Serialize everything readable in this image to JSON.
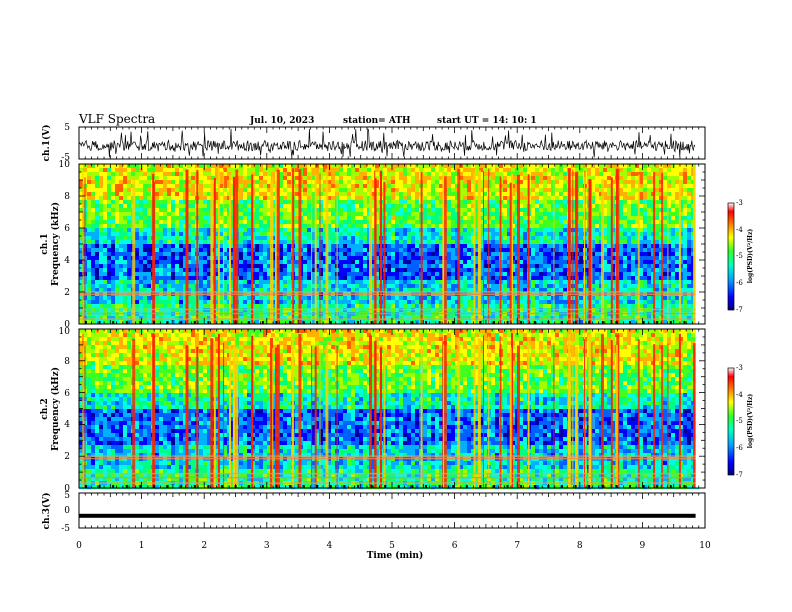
{
  "header": {
    "title": "VLF Spectra",
    "date": "Jul. 10, 2023",
    "station": "station= ATH",
    "start_ut": "start UT = 14: 10: 1"
  },
  "chart_data": {
    "type": "heatmap",
    "x_axis": {
      "label": "Time (min)",
      "range": [
        0,
        10
      ],
      "ticks": [
        "0",
        "1",
        "2",
        "3",
        "4",
        "5",
        "6",
        "7",
        "8",
        "9",
        "10"
      ],
      "data_end": 9.85
    },
    "panels": [
      {
        "type": "line",
        "ylabel": "ch.1(V)",
        "ylim": [
          -5,
          5
        ],
        "yticks": [
          "5",
          "-5"
        ],
        "description_level": "noisy signal, typically -2.5 to 1.5 V with spikes"
      },
      {
        "type": "heatmap",
        "ylabel_channel": "ch.1",
        "ylabel": "Frequency (kHz)",
        "ylim": [
          0,
          10
        ],
        "yticks": [
          "0",
          "2",
          "4",
          "6",
          "8",
          "10"
        ],
        "colorbar": {
          "label": "log(PSD)(V²/Hz)",
          "range": [
            -7,
            -3
          ],
          "ticks": [
            "-3",
            "-4",
            "-5",
            "-6",
            "-7"
          ],
          "colors": [
            "#000080",
            "#0000ff",
            "#00a0ff",
            "#00ffc0",
            "#30ff30",
            "#ffff00",
            "#ff8000",
            "#ff0000",
            "#ffffff"
          ]
        }
      },
      {
        "type": "heatmap",
        "ylabel_channel": "ch.2",
        "ylabel": "Frequency (kHz)",
        "ylim": [
          0,
          10
        ],
        "yticks": [
          "0",
          "2",
          "4",
          "6",
          "8",
          "10"
        ],
        "colorbar": {
          "label": "log(PSD)(V²/Hz)",
          "range": [
            -7,
            -3
          ],
          "ticks": [
            "-3",
            "-4",
            "-5",
            "-6",
            "-7"
          ],
          "colors": [
            "#000080",
            "#0000ff",
            "#00a0ff",
            "#00ffc0",
            "#30ff30",
            "#ffff00",
            "#ff8000",
            "#ff0000",
            "#ffffff"
          ]
        }
      },
      {
        "type": "line",
        "ylabel": "ch.3(V)",
        "ylim": [
          -5,
          5
        ],
        "yticks": [
          "5",
          "0",
          "-5"
        ],
        "level": -1.5
      }
    ]
  }
}
